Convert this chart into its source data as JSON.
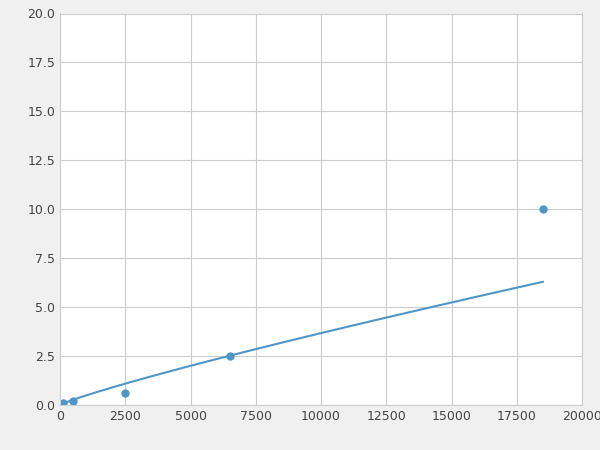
{
  "x": [
    100,
    500,
    2500,
    6500,
    18500
  ],
  "y": [
    0.1,
    0.2,
    0.6,
    2.5,
    10.0
  ],
  "line_color": "#4f96c8",
  "marker_color": "#4f96c8",
  "marker_style": "o",
  "marker_size": 5,
  "linewidth": 1.5,
  "xlim": [
    0,
    20000
  ],
  "ylim": [
    0,
    20.0
  ],
  "xticks": [
    0,
    2500,
    5000,
    7500,
    10000,
    12500,
    15000,
    17500,
    20000
  ],
  "yticks": [
    0.0,
    2.5,
    5.0,
    7.5,
    10.0,
    12.5,
    15.0,
    17.5,
    20.0
  ],
  "grid_color": "#cccccc",
  "background_color": "#ffffff",
  "figure_background": "#f0f0f0"
}
